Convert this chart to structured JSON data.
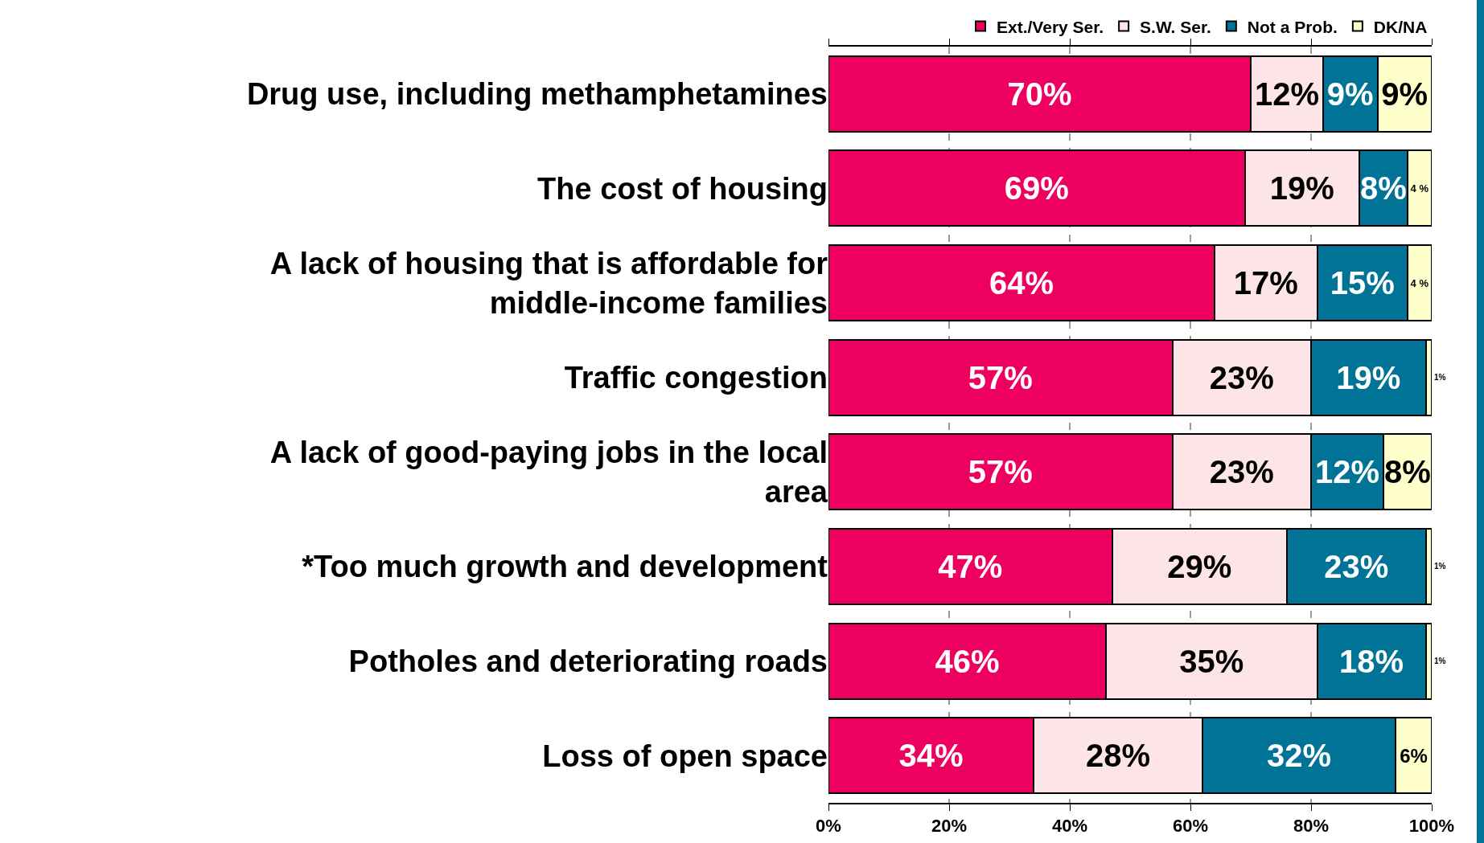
{
  "chart_data": {
    "type": "bar",
    "orientation": "horizontal",
    "stacked": true,
    "categories": [
      "Drug use, including methamphetamines",
      "The cost of housing",
      "A lack of housing that is affordable for middle-income families",
      "Traffic congestion",
      "A lack of good-paying jobs in the local area",
      "*Too much growth and development",
      "Potholes and deteriorating roads",
      "Loss of open space"
    ],
    "series": [
      {
        "name": "Ext./Very Ser.",
        "color": "#ee0060",
        "values": [
          70,
          69,
          64,
          57,
          57,
          47,
          46,
          34
        ],
        "value_labels": [
          "70%",
          "69%",
          "64%",
          "57%",
          "57%",
          "47%",
          "46%",
          "34%"
        ]
      },
      {
        "name": "S.W. Ser.",
        "color": "#fde4e6",
        "values": [
          12,
          19,
          17,
          23,
          23,
          29,
          35,
          28
        ],
        "value_labels": [
          "12%",
          "19%",
          "17%",
          "23%",
          "23%",
          "29%",
          "35%",
          "28%"
        ]
      },
      {
        "name": "Not a Prob.",
        "color": "#007396",
        "values": [
          9,
          8,
          15,
          19,
          12,
          23,
          18,
          32
        ],
        "value_labels": [
          "9%",
          "8%",
          "15%",
          "19%",
          "12%",
          "23%",
          "18%",
          "32%"
        ]
      },
      {
        "name": "DK/NA",
        "color": "#ffffcc",
        "values": [
          9,
          4,
          4,
          1,
          8,
          1,
          1,
          6
        ],
        "value_labels": [
          "9%",
          "4 %",
          "4 %",
          "1%",
          "8%",
          "1%",
          "1%",
          "6%"
        ]
      }
    ],
    "xlim": [
      0,
      100
    ],
    "xticks": [
      {
        "value": 0,
        "label": "0%"
      },
      {
        "value": 20,
        "label": "20%"
      },
      {
        "value": 40,
        "label": "40%"
      },
      {
        "value": 60,
        "label": "60%"
      },
      {
        "value": 80,
        "label": "80%"
      },
      {
        "value": 100,
        "label": "100%"
      }
    ],
    "grid": "x",
    "legend": "top right"
  }
}
